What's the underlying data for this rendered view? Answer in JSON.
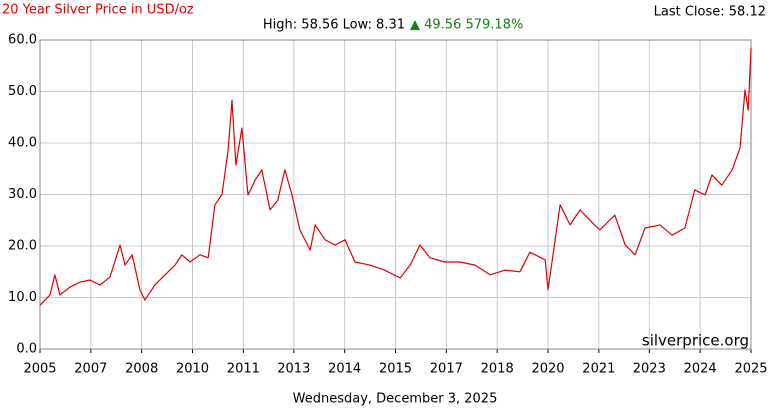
{
  "chart_data": {
    "type": "line",
    "title": "20 Year Silver Price in USD/oz",
    "last_close": "Last Close: 58.12",
    "stats_range": "High: 58.56 Low: 8.31",
    "stats_change": "▲ 49.56 579.18%",
    "watermark": "silverprice.org",
    "date": "Wednesday, December 3, 2025",
    "color": "#e00000",
    "grid": true,
    "xlim": [
      2005.92,
      2025.92
    ],
    "ylim": [
      0,
      60
    ],
    "yticks": [
      {
        "value": 0,
        "label": "0.0"
      },
      {
        "value": 10,
        "label": "10.0"
      },
      {
        "value": 20,
        "label": "20.0"
      },
      {
        "value": 30,
        "label": "30.0"
      },
      {
        "value": 40,
        "label": "40.0"
      },
      {
        "value": 50,
        "label": "50.0"
      },
      {
        "value": 60,
        "label": "60.0"
      }
    ],
    "xticks": [
      {
        "value": 2005.92,
        "label": "2005"
      },
      {
        "value": 2007.35,
        "label": "2007"
      },
      {
        "value": 2008.78,
        "label": "2008"
      },
      {
        "value": 2010.21,
        "label": "2010"
      },
      {
        "value": 2011.64,
        "label": "2011"
      },
      {
        "value": 2013.06,
        "label": "2013"
      },
      {
        "value": 2014.49,
        "label": "2014"
      },
      {
        "value": 2015.92,
        "label": "2015"
      },
      {
        "value": 2017.35,
        "label": "2017"
      },
      {
        "value": 2018.78,
        "label": "2018"
      },
      {
        "value": 2020.21,
        "label": "2020"
      },
      {
        "value": 2021.64,
        "label": "2021"
      },
      {
        "value": 2023.06,
        "label": "2023"
      },
      {
        "value": 2024.49,
        "label": "2024"
      },
      {
        "value": 2025.92,
        "label": "2025"
      }
    ],
    "x": [
      2005.92,
      2006.2,
      2006.34,
      2006.48,
      2006.76,
      2007.05,
      2007.33,
      2007.61,
      2007.89,
      2008.17,
      2008.31,
      2008.51,
      2008.73,
      2008.87,
      2009.15,
      2009.44,
      2009.72,
      2009.91,
      2010.14,
      2010.42,
      2010.65,
      2010.84,
      2011.04,
      2011.21,
      2011.32,
      2011.43,
      2011.6,
      2011.77,
      2011.97,
      2012.16,
      2012.39,
      2012.61,
      2012.81,
      2013.01,
      2013.23,
      2013.52,
      2013.66,
      2013.94,
      2014.22,
      2014.5,
      2014.78,
      2015.2,
      2015.62,
      2016.05,
      2016.33,
      2016.61,
      2016.89,
      2017.31,
      2017.73,
      2018.16,
      2018.58,
      2019.0,
      2019.42,
      2019.7,
      2020.13,
      2020.21,
      2020.35,
      2020.55,
      2020.83,
      2021.11,
      2021.39,
      2021.67,
      2022.09,
      2022.38,
      2022.66,
      2022.94,
      2023.36,
      2023.7,
      2024.06,
      2024.34,
      2024.63,
      2024.82,
      2025.1,
      2025.39,
      2025.61,
      2025.75,
      2025.84,
      2025.92
    ],
    "series": [
      {
        "name": "Silver",
        "color": "#e00000",
        "values": [
          8.5,
          10.5,
          14.4,
          10.5,
          12,
          13,
          13.4,
          12.4,
          14,
          20.2,
          16.3,
          18.3,
          11.5,
          9.5,
          12.4,
          14.4,
          16.3,
          18.3,
          16.9,
          18.3,
          17.7,
          28,
          30,
          38.6,
          48.3,
          35.7,
          42.9,
          29.9,
          32.8,
          34.8,
          27,
          28.9,
          34.8,
          29.9,
          23.1,
          19.2,
          24.1,
          21.2,
          20.2,
          21.2,
          16.9,
          16.3,
          15.3,
          13.8,
          16.3,
          20.2,
          17.7,
          16.9,
          16.9,
          16.3,
          14.4,
          15.3,
          15,
          18.8,
          17.3,
          11.5,
          18.3,
          28,
          24.1,
          27,
          25,
          23.1,
          26,
          20.2,
          18.3,
          23.5,
          24.1,
          22.1,
          23.5,
          30.9,
          29.9,
          33.8,
          31.8,
          34.8,
          39,
          50.3,
          46.4,
          58.4
        ]
      }
    ]
  }
}
